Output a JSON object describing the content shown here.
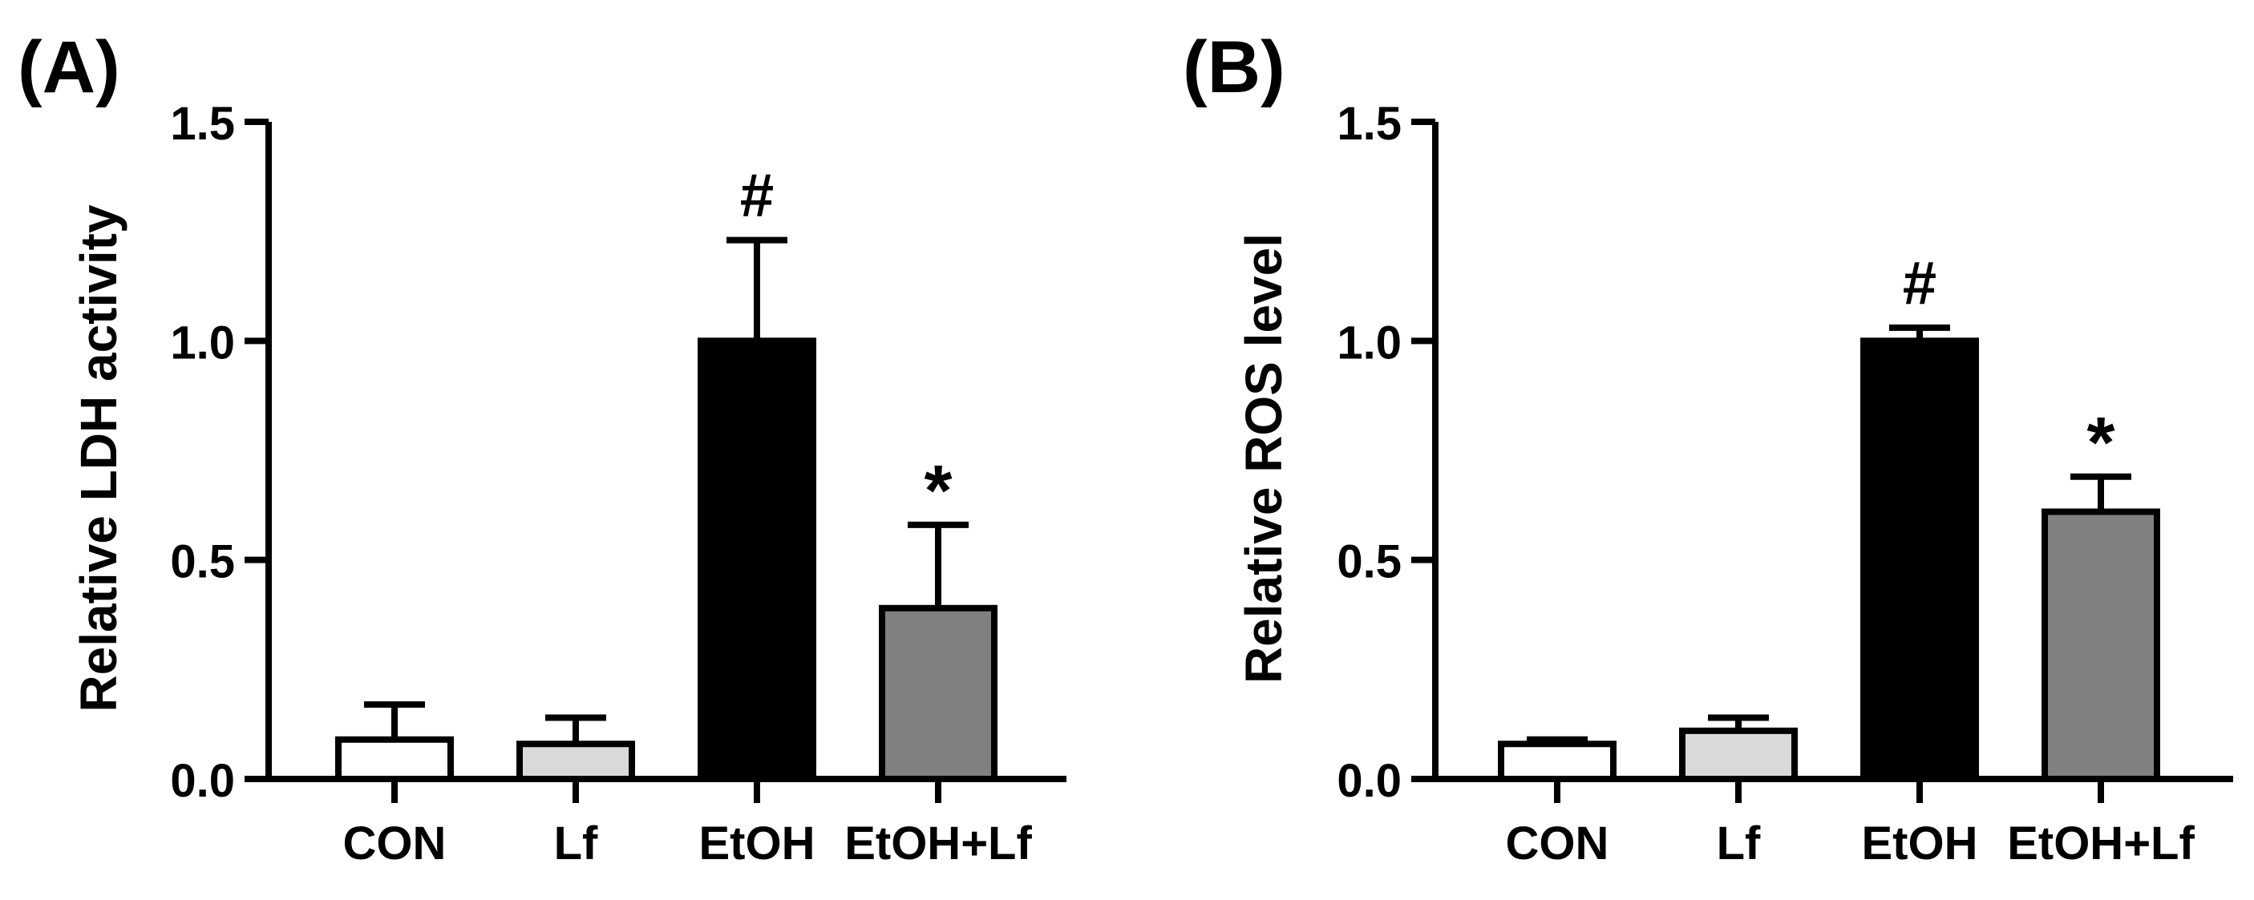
{
  "chart_data": [
    {
      "type": "bar",
      "panel_label": "(A)",
      "categories": [
        "CON",
        "Lf",
        "EtOH",
        "EtOH+Lf"
      ],
      "values": [
        0.09,
        0.08,
        1.0,
        0.39
      ],
      "errors": [
        0.08,
        0.06,
        0.23,
        0.19
      ],
      "significance": [
        "",
        "",
        "#",
        "*"
      ],
      "colors": [
        "#ffffff",
        "#d9d9d9",
        "#000000",
        "#808080"
      ],
      "ylabel": "Relative LDH activity",
      "ylim": [
        0,
        1.5
      ],
      "yticks": [
        "0.0",
        "0.5",
        "1.0",
        "1.5"
      ],
      "grid": false
    },
    {
      "type": "bar",
      "panel_label": "(B)",
      "categories": [
        "CON",
        "Lf",
        "EtOH",
        "EtOH+Lf"
      ],
      "values": [
        0.08,
        0.11,
        1.0,
        0.61
      ],
      "errors": [
        0.01,
        0.03,
        0.03,
        0.08
      ],
      "significance": [
        "",
        "",
        "#",
        "*"
      ],
      "colors": [
        "#ffffff",
        "#d9d9d9",
        "#000000",
        "#808080"
      ],
      "ylabel": "Relative ROS level",
      "ylim": [
        0,
        1.5
      ],
      "yticks": [
        "0.0",
        "0.5",
        "1.0",
        "1.5"
      ],
      "grid": false
    }
  ]
}
